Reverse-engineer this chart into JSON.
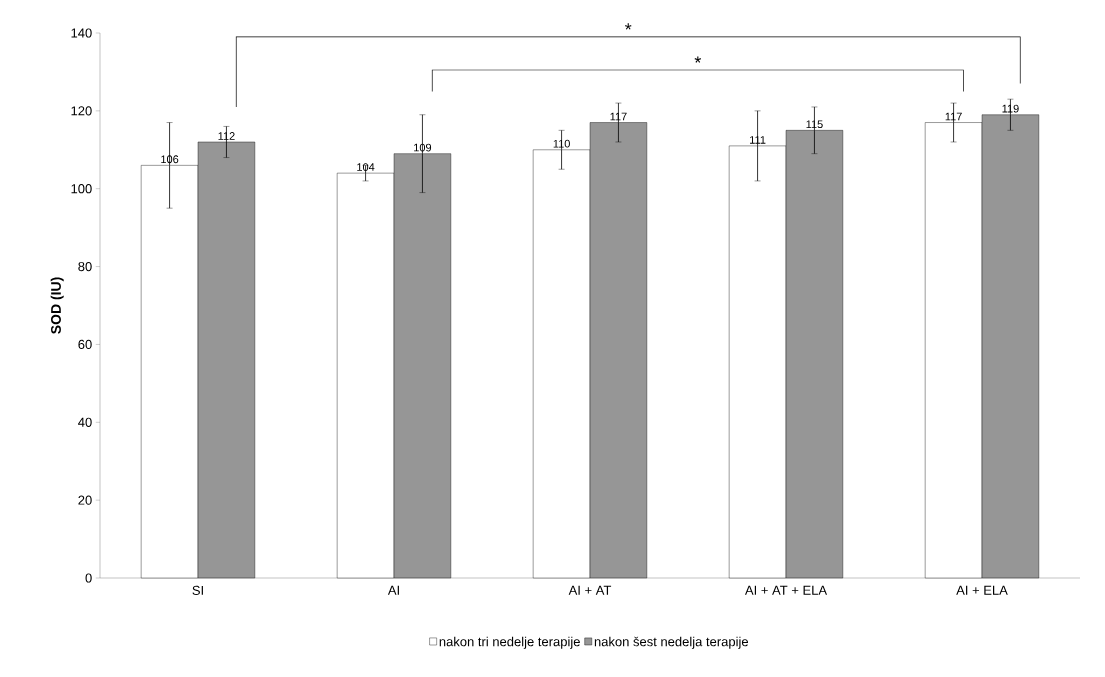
{
  "chart_data": {
    "type": "bar",
    "ylabel": "SOD (IU)",
    "categories": [
      "SI",
      "AI",
      "AI + AT",
      "AI + AT + ELA",
      "AI + ELA"
    ],
    "series": [
      {
        "name": "nakon tri nedelje terapije",
        "color": "#ffffff",
        "values": [
          106,
          104,
          110,
          111,
          117
        ],
        "errors": [
          11,
          2,
          5,
          9,
          5
        ]
      },
      {
        "name": "nakon šest nedelja terapije",
        "color": "#969696",
        "values": [
          112,
          109,
          117,
          115,
          119
        ],
        "errors": [
          4,
          10,
          5,
          6,
          4
        ]
      }
    ],
    "ylim": [
      0,
      140
    ],
    "yticks": [
      0,
      20,
      40,
      60,
      80,
      100,
      120,
      140
    ],
    "data_labels": true,
    "legend": "bottom",
    "grid": false,
    "annotations": [
      "*",
      "*"
    ]
  }
}
